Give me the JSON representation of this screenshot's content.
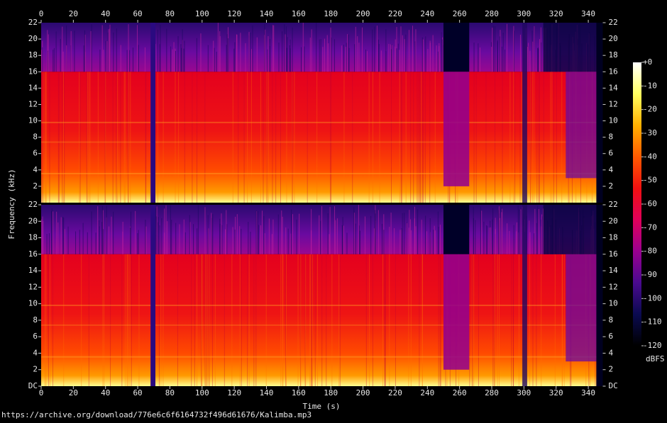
{
  "chart_data": {
    "type": "spectrogram",
    "xlabel": "Time (s)",
    "ylabel": "Frequency (kHz)",
    "xlim": [
      0,
      349
    ],
    "xticks": [
      0,
      20,
      40,
      60,
      80,
      100,
      120,
      140,
      160,
      180,
      200,
      220,
      240,
      260,
      280,
      300,
      320,
      340
    ],
    "channels": [
      {
        "ylim": [
          0,
          22
        ],
        "yticks": [
          2,
          4,
          6,
          8,
          10,
          12,
          14,
          16,
          18,
          20,
          22
        ]
      },
      {
        "ylim": [
          0,
          22
        ],
        "yticks": [
          {
            "value": 0,
            "label": "DC"
          },
          2,
          4,
          6,
          8,
          10,
          12,
          14,
          16,
          18,
          20,
          22
        ]
      }
    ],
    "colorbar": {
      "label": "dBFS",
      "lim": [
        -120,
        0
      ],
      "ticks": [
        {
          "value": 0,
          "label": "+0"
        },
        -10,
        -20,
        -30,
        -40,
        -50,
        -60,
        -70,
        -80,
        -90,
        -100,
        -110,
        -120
      ],
      "colors": [
        "#000000",
        "#0a0a50",
        "#4a0a90",
        "#9a0090",
        "#e0005a",
        "#f01010",
        "#ff5a00",
        "#ffb000",
        "#ffff60",
        "#ffffff"
      ]
    },
    "source": "https://archive.org/download/776e6c6f6164732f496d61676/Kalimba.mp3"
  }
}
